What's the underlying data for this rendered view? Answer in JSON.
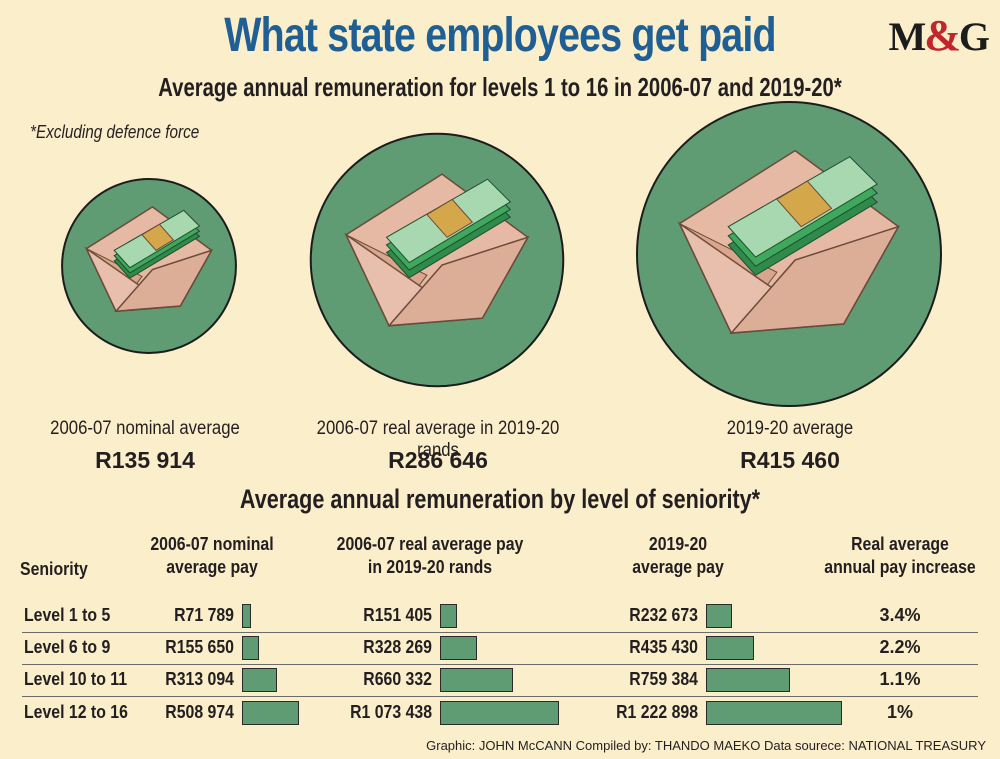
{
  "title": "What state employees get paid",
  "logo": {
    "m": "M",
    "amp": "&",
    "g": "G"
  },
  "subtitle": "Average annual remuneration for levels 1 to 16 in 2006-07 and 2019-20*",
  "note": "*Excluding defence force",
  "circles": [
    {
      "label": "2006-07 nominal average",
      "value": "R135 914",
      "amount": 135914
    },
    {
      "label": "2006-07 real average in 2019-20 rands",
      "value": "R286 646",
      "amount": 286646
    },
    {
      "label": "2019-20 average",
      "value": "R415 460",
      "amount": 415460
    }
  ],
  "section_title": "Average annual remuneration by level of seniority*",
  "headers": {
    "seniority": "Seniority",
    "nominal": [
      "2006-07 nominal",
      "average pay"
    ],
    "real": [
      "2006-07 real average pay",
      "in 2019-20 rands"
    ],
    "current": [
      "2019-20",
      "average pay"
    ],
    "increase": [
      "Real average",
      "annual pay increase"
    ]
  },
  "credit": "Graphic: JOHN McCANN  Compiled by: THANDO MAEKO  Data sourece: NATIONAL TREASURY",
  "colors": {
    "green": "#5f9b73",
    "title_blue": "#1f5f93",
    "background": "#fbeecb"
  },
  "chart_data": {
    "type": "bar",
    "title": "Average annual remuneration by level of seniority*",
    "categories": [
      "Level 1 to 5",
      "Level 6 to 9",
      "Level 10 to 11",
      "Level 12 to 16"
    ],
    "series": [
      {
        "name": "2006-07 nominal average pay",
        "labels": [
          "R71 789",
          "R155 650",
          "R313 094",
          "R508 974"
        ],
        "values": [
          71789,
          155650,
          313094,
          508974
        ]
      },
      {
        "name": "2006-07 real average pay in 2019-20 rands",
        "labels": [
          "R151 405",
          "R328 269",
          "R660 332",
          "R1 073 438"
        ],
        "values": [
          151405,
          328269,
          660332,
          1073438
        ]
      },
      {
        "name": "2019-20 average pay",
        "labels": [
          "R232 673",
          "R435 430",
          "R759 384",
          "R1 222 898"
        ],
        "values": [
          232673,
          435430,
          759384,
          1222898
        ]
      },
      {
        "name": "Real average annual pay increase",
        "labels": [
          "3.4%",
          "2.2%",
          "1.1%",
          "1%"
        ],
        "values": [
          3.4,
          2.2,
          1.1,
          1.0
        ]
      }
    ]
  }
}
